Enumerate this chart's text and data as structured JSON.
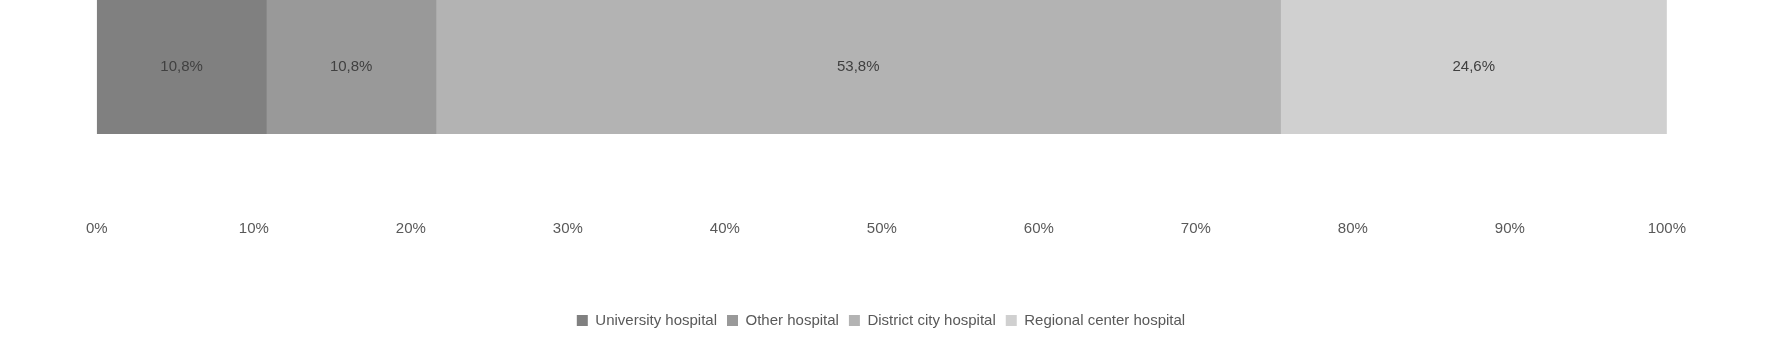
{
  "chart_data": {
    "type": "bar",
    "orientation": "horizontal",
    "stacked": true,
    "categories": [
      null
    ],
    "series": [
      {
        "name": "University hospital",
        "color": "#808080",
        "values": [
          10.8
        ],
        "value_labels": [
          "10,8%"
        ]
      },
      {
        "name": "Other hospital",
        "color": "#999999",
        "values": [
          10.8
        ],
        "value_labels": [
          "10,8%"
        ]
      },
      {
        "name": "District city hospital",
        "color": "#b3b3b3",
        "values": [
          53.8
        ],
        "value_labels": [
          "53,8%"
        ]
      },
      {
        "name": "Regional center hospital",
        "color": "#d0d0d0",
        "values": [
          24.6
        ],
        "value_labels": [
          "24,6%"
        ]
      }
    ],
    "xlim": [
      0,
      100
    ],
    "xticks": [
      {
        "value": 0,
        "label": "0%"
      },
      {
        "value": 10,
        "label": "10%"
      },
      {
        "value": 20,
        "label": "20%"
      },
      {
        "value": 30,
        "label": "30%"
      },
      {
        "value": 40,
        "label": "40%"
      },
      {
        "value": 50,
        "label": "50%"
      },
      {
        "value": 60,
        "label": "60%"
      },
      {
        "value": 70,
        "label": "70%"
      },
      {
        "value": 80,
        "label": "80%"
      },
      {
        "value": 90,
        "label": "90%"
      },
      {
        "value": 100,
        "label": "100%"
      }
    ],
    "grid": false,
    "legend": "bottom"
  }
}
